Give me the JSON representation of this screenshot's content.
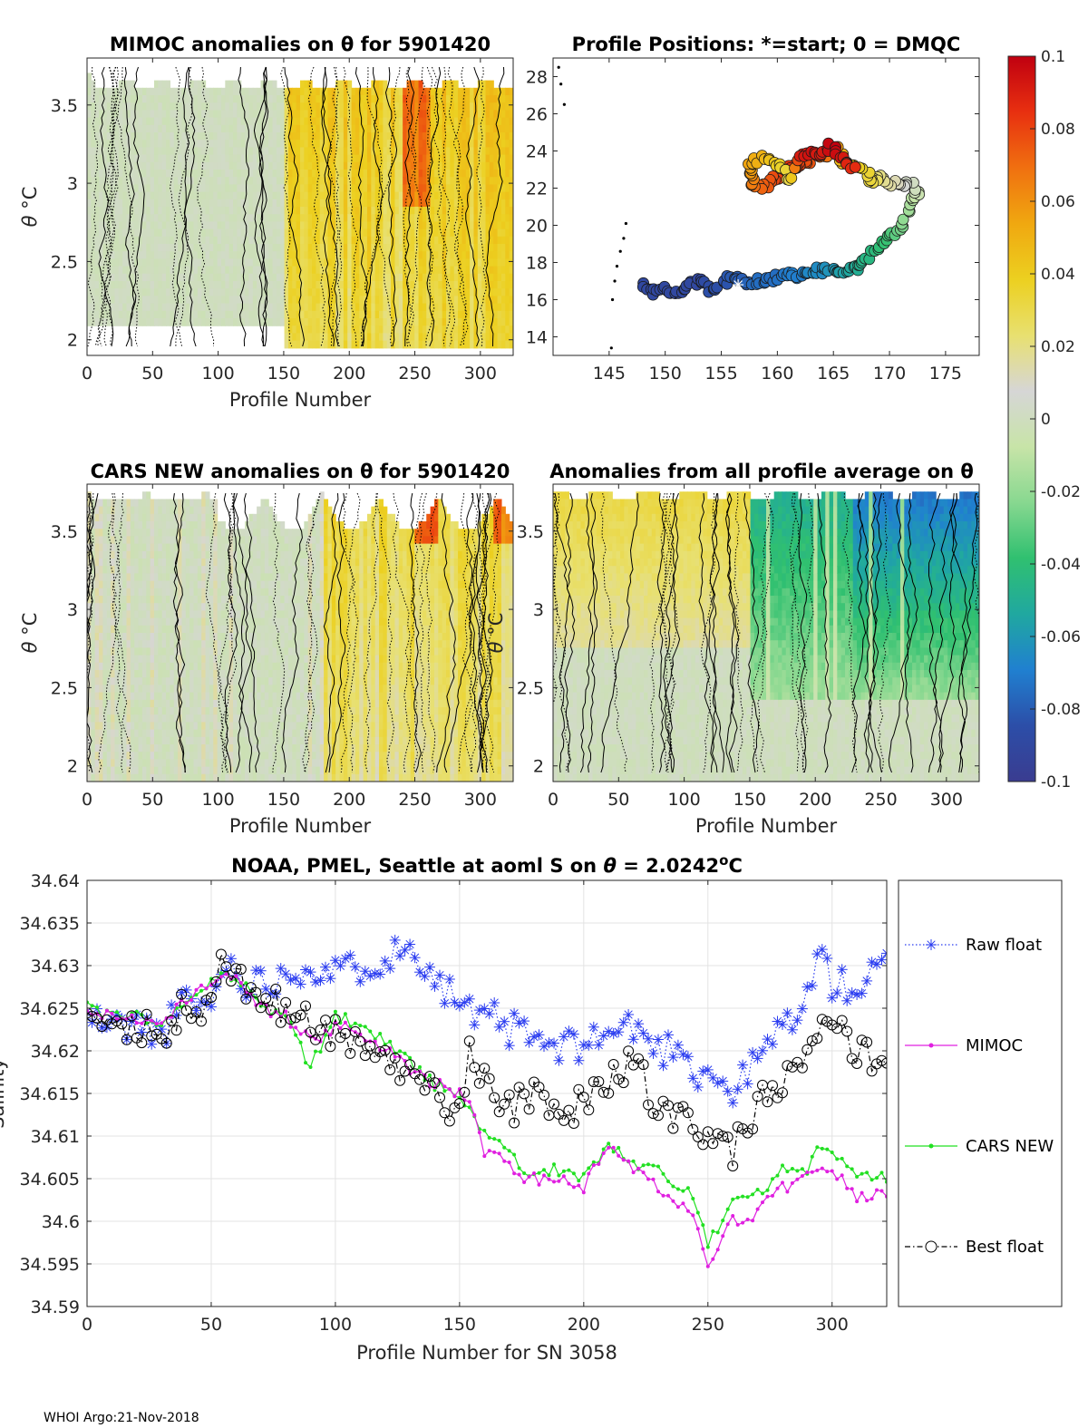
{
  "footer": "WHOI Argo:21-Nov-2018",
  "colors": {
    "raw": "#2a3cf0",
    "mimoc": "#e020e0",
    "cars": "#22e022",
    "best": "#000000",
    "neutral": "#d4d4d4",
    "warm": "#f2c800",
    "hot": "#c80010"
  },
  "colorbar": {
    "min": -0.1,
    "max": 0.1,
    "tick_labels": [
      "0.1",
      "0.08",
      "0.06",
      "0.04",
      "0.02",
      "0",
      "-0.02",
      "-0.04",
      "-0.06",
      "-0.08",
      "-0.1"
    ],
    "stops": [
      "#c00010",
      "#e83010",
      "#f07010",
      "#f0a810",
      "#ecd020",
      "#e8e070",
      "#d6d6d6",
      "#c8e4a8",
      "#88d890",
      "#30c070",
      "#20a8a0",
      "#2080d0",
      "#2c4ea8",
      "#3a3c90"
    ]
  },
  "panels": {
    "mimoc": {
      "title": "MIMOC anomalies on θ  for 5901420",
      "ylabel_main": "θ",
      "ylabel_unit": " °C",
      "xlabel": "Profile Number",
      "x_ticks": [
        "0",
        "50",
        "100",
        "150",
        "200",
        "250",
        "300"
      ],
      "y_ticks": [
        "3.5",
        "3",
        "2.5",
        "2"
      ]
    },
    "positions": {
      "title": "Profile Positions: *=start; 0 = DMQC",
      "x_ticks": [
        "145",
        "150",
        "155",
        "160",
        "165",
        "170",
        "175"
      ],
      "y_ticks": [
        "28",
        "26",
        "24",
        "22",
        "20",
        "18",
        "16",
        "14"
      ]
    },
    "cars": {
      "title": "CARS NEW anomalies on θ for 5901420",
      "ylabel_main": "θ",
      "ylabel_unit": " °C",
      "xlabel": "Profile Number",
      "x_ticks": [
        "0",
        "50",
        "100",
        "150",
        "200",
        "250",
        "300"
      ],
      "y_ticks": [
        "3.5",
        "3",
        "2.5",
        "2"
      ]
    },
    "average": {
      "title": "Anomalies from all profile average on θ",
      "ylabel_main": "θ",
      "ylabel_unit": " °C",
      "xlabel": "Profile Number",
      "x_ticks": [
        "0",
        "50",
        "100",
        "150",
        "200",
        "250",
        "300"
      ],
      "y_ticks": [
        "3.5",
        "3",
        "2.5",
        "2"
      ]
    }
  },
  "chart_data": [
    {
      "type": "heatmap",
      "title": "MIMOC anomalies on θ  for 5901420",
      "xlabel": "Profile Number",
      "ylabel": "θ °C",
      "xlim": [
        0,
        325
      ],
      "ylim": [
        1.95,
        3.8
      ],
      "description_values": {
        "profiles_0_150": 0.0,
        "profiles_150_325": 0.025,
        "peak": 0.07
      }
    },
    {
      "type": "scatter",
      "title": "Profile Positions: *=start; 0 = DMQC",
      "xlim": [
        140,
        178
      ],
      "ylim": [
        13,
        29
      ],
      "start_marker": [
        156.5,
        16.8
      ],
      "track_lon": [
        148,
        149,
        150,
        151,
        152,
        153,
        154,
        155,
        156,
        157,
        158,
        159,
        160,
        161,
        162,
        163,
        164,
        165,
        166,
        167,
        168,
        169,
        170,
        171,
        172,
        172.5,
        171.5,
        170,
        169,
        168.5,
        168,
        166,
        165,
        164,
        163,
        162,
        161,
        160,
        159,
        158,
        157.5,
        157.5,
        158.5,
        160,
        161,
        162,
        163,
        164,
        165,
        166,
        167
      ],
      "track_lat": [
        16.7,
        16.4,
        16.5,
        16.3,
        16.8,
        17.1,
        16.6,
        16.9,
        17.2,
        16.9,
        17.0,
        17.0,
        17.2,
        17.4,
        17.3,
        17.6,
        17.6,
        17.7,
        17.6,
        17.7,
        18.2,
        18.9,
        19.4,
        20.0,
        21.0,
        21.8,
        22.3,
        22.2,
        22.6,
        22.3,
        22.8,
        23.5,
        24.2,
        23.7,
        23.6,
        23.2,
        23.0,
        22.6,
        22.2,
        22.0,
        22.6,
        23.2,
        23.6,
        23.3,
        22.5,
        23.7,
        24.0,
        23.9,
        24.3,
        23.5,
        22.9
      ],
      "track_value": [
        -0.09,
        -0.09,
        -0.09,
        -0.09,
        -0.09,
        -0.09,
        -0.085,
        -0.085,
        -0.08,
        -0.08,
        -0.075,
        -0.075,
        -0.075,
        -0.07,
        -0.07,
        -0.065,
        -0.065,
        -0.06,
        -0.055,
        -0.05,
        -0.045,
        -0.04,
        -0.035,
        -0.025,
        -0.015,
        -0.005,
        0.005,
        0.015,
        0.02,
        0.03,
        0.035,
        0.045,
        0.06,
        0.07,
        0.075,
        0.08,
        0.085,
        0.08,
        0.075,
        0.07,
        0.06,
        0.055,
        0.05,
        0.04,
        0.03,
        0.09,
        0.095,
        0.09,
        0.1,
        0.09,
        0.085
      ],
      "dmqc_lon": [
        140.5,
        140.7,
        141,
        145.3,
        145.5,
        145.7,
        146,
        146.3,
        146.5,
        145.2
      ],
      "dmqc_lat": [
        28.5,
        27.6,
        26.5,
        16.0,
        17.0,
        17.8,
        18.6,
        19.3,
        20.1,
        13.4
      ]
    },
    {
      "type": "heatmap",
      "title": "CARS NEW anomalies on θ for 5901420",
      "xlabel": "Profile Number",
      "ylabel": "θ °C",
      "xlim": [
        0,
        325
      ],
      "ylim": [
        1.95,
        3.8
      ]
    },
    {
      "type": "heatmap",
      "title": "Anomalies from all profile average on θ",
      "xlabel": "Profile Number",
      "ylabel": "θ °C",
      "xlim": [
        0,
        325
      ],
      "ylim": [
        1.95,
        3.8
      ],
      "description_values": {
        "profiles_0_150_upper": 0.03,
        "profiles_150_325_upper": -0.05
      }
    },
    {
      "type": "line",
      "title_main": "NOAA, PMEL, Seattle at aoml S on ",
      "title_theta": "θ",
      "title_value": " = 2.0242",
      "title_sup": "o",
      "title_unit": "C",
      "xlabel": "Profile Number for SN 3058",
      "ylabel": "Salinity",
      "xlim": [
        0,
        322
      ],
      "ylim": [
        34.59,
        34.64
      ],
      "x_ticks": [
        "0",
        "50",
        "100",
        "150",
        "200",
        "250",
        "300"
      ],
      "y_ticks": [
        "34.64",
        "34.635",
        "34.63",
        "34.625",
        "34.62",
        "34.615",
        "34.61",
        "34.605",
        "34.6",
        "34.595",
        "34.59"
      ],
      "x": [
        0,
        10,
        20,
        30,
        40,
        50,
        55,
        60,
        65,
        70,
        80,
        90,
        100,
        110,
        120,
        130,
        135,
        140,
        145,
        150,
        155,
        160,
        165,
        170,
        175,
        180,
        190,
        200,
        210,
        220,
        230,
        240,
        245,
        250,
        255,
        260,
        270,
        280,
        290,
        295,
        300,
        310,
        320
      ],
      "series": [
        {
          "name": "Raw float",
          "values": [
            34.624,
            34.623,
            34.623,
            34.622,
            34.626,
            34.625,
            34.631,
            34.629,
            34.628,
            34.628,
            34.629,
            34.63,
            34.629,
            34.63,
            34.631,
            34.632,
            34.631,
            34.629,
            34.627,
            34.626,
            34.624,
            34.623,
            34.624,
            34.622,
            34.623,
            34.621,
            34.62,
            34.621,
            34.622,
            34.623,
            34.62,
            34.621,
            34.617,
            34.618,
            34.616,
            34.615,
            34.619,
            34.623,
            34.626,
            34.632,
            34.628,
            34.627,
            34.63
          ]
        },
        {
          "name": "MIMOC",
          "values": [
            34.625,
            34.624,
            34.624,
            34.623,
            34.626,
            34.628,
            34.629,
            34.629,
            34.627,
            34.625,
            34.624,
            34.621,
            34.623,
            34.622,
            34.62,
            34.618,
            34.617,
            34.616,
            34.616,
            34.615,
            34.614,
            34.608,
            34.608,
            34.607,
            34.605,
            34.605,
            34.605,
            34.604,
            34.609,
            34.606,
            34.604,
            34.602,
            34.6,
            34.595,
            34.598,
            34.6,
            34.601,
            34.604,
            34.605,
            34.607,
            34.606,
            34.603,
            34.603
          ]
        },
        {
          "name": "CARS NEW",
          "values": [
            34.625,
            34.624,
            34.624,
            34.623,
            34.626,
            34.628,
            34.629,
            34.629,
            34.627,
            34.625,
            34.624,
            34.618,
            34.624,
            34.623,
            34.621,
            34.619,
            34.617,
            34.616,
            34.616,
            34.614,
            34.613,
            34.61,
            34.609,
            34.608,
            34.606,
            34.606,
            34.606,
            34.605,
            34.609,
            34.607,
            34.606,
            34.604,
            34.602,
            34.597,
            34.6,
            34.603,
            34.603,
            34.606,
            34.606,
            34.609,
            34.608,
            34.605,
            34.605
          ]
        },
        {
          "name": "Best float",
          "values": [
            34.624,
            34.623,
            34.623,
            34.622,
            34.626,
            34.625,
            34.631,
            34.629,
            34.627,
            34.626,
            34.625,
            34.623,
            34.622,
            34.621,
            34.619,
            34.617,
            34.616,
            34.615,
            34.613,
            34.614,
            34.621,
            34.616,
            34.615,
            34.613,
            34.614,
            34.615,
            34.612,
            34.614,
            34.616,
            34.619,
            34.613,
            34.612,
            34.611,
            34.61,
            34.608,
            34.608,
            34.614,
            34.616,
            34.619,
            34.622,
            34.623,
            34.62,
            34.619
          ]
        }
      ]
    }
  ]
}
